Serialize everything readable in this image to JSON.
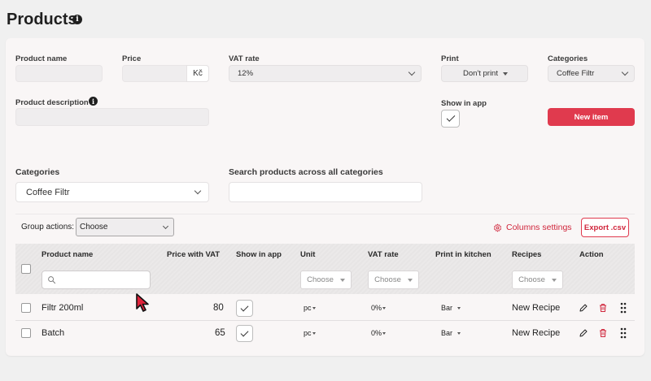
{
  "page": {
    "title": "Products"
  },
  "form": {
    "product_name_label": "Product name",
    "price_label": "Price",
    "currency": "Kč",
    "vat_label": "VAT rate",
    "vat_value": "12%",
    "print_label": "Print",
    "print_value": "Don't print",
    "categories_label": "Categories",
    "categories_value": "Coffee Filtr",
    "description_label": "Product description",
    "show_in_app_label": "Show in app",
    "new_item_label": "New item"
  },
  "filters": {
    "categories_label": "Categories",
    "categories_value": "Coffee Filtr",
    "search_label": "Search products across all categories"
  },
  "table_tools": {
    "group_actions_label": "Group actions:",
    "group_actions_value": "Choose",
    "columns_settings_label": "Columns settings",
    "export_label": "Export .csv"
  },
  "table": {
    "columns": [
      "Product name",
      "Price with VAT",
      "Show in app",
      "Unit",
      "VAT rate",
      "Print in kitchen",
      "Recipes",
      "Action"
    ],
    "filter_placeholder": "Choose",
    "rows": [
      {
        "name": "Filtr 200ml",
        "price": "80",
        "unit": "pc",
        "vat": "0%",
        "print": "Bar",
        "recipe": "New Recipe"
      },
      {
        "name": "Batch",
        "price": "65",
        "unit": "pc",
        "vat": "0%",
        "print": "Bar",
        "recipe": "New Recipe"
      }
    ]
  },
  "colors": {
    "accent": "#e03a4e",
    "background": "#f0f0f0",
    "card": "#f9f6f6"
  }
}
